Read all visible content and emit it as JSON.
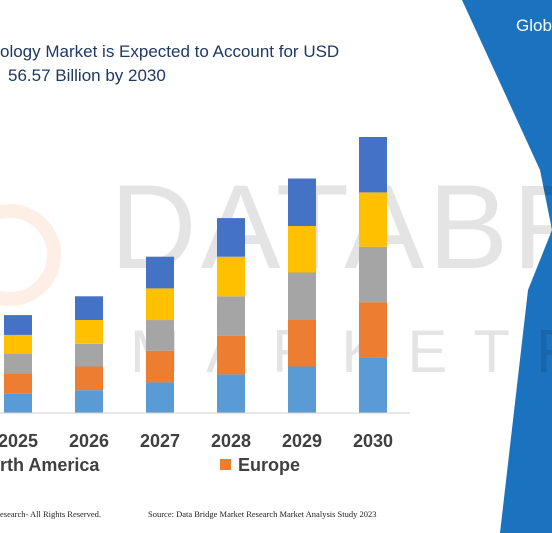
{
  "header": {
    "title_line1": "ology Market is Expected to Account for USD",
    "title_line2": "56.57 Billion by 2030",
    "brand_text": "Glob"
  },
  "footer": {
    "left_text": "esearch- All Rights Reserved.",
    "right_text": "Source: Data Bridge Market Research Market Analysis Study 2023"
  },
  "watermark": {
    "text": "DATABRI",
    "subtext": "MARKETRES"
  },
  "colors": {
    "brand_blue": "#1b72be",
    "title": "#1f3864",
    "segment_1": "#5b9bd5",
    "segment_2": "#ed7d31",
    "segment_3": "#a5a5a5",
    "segment_4": "#ffc000",
    "segment_5": "#4472c4"
  },
  "chart_data": {
    "type": "bar",
    "stacked": true,
    "categories": [
      "2025",
      "2026",
      "2027",
      "2028",
      "2029",
      "2030"
    ],
    "series": [
      {
        "name": "rth America",
        "color": "#5b9bd5",
        "values": [
          20,
          23,
          31,
          39,
          47,
          56
        ]
      },
      {
        "name": "Europe",
        "color": "#ed7d31",
        "values": [
          20,
          24,
          32,
          39,
          47,
          56
        ]
      },
      {
        "color": "#a5a5a5",
        "values": [
          20,
          23,
          31,
          40,
          48,
          56
        ]
      },
      {
        "color": "#ffc000",
        "values": [
          19,
          24,
          32,
          40,
          47,
          55
        ]
      },
      {
        "color": "#4472c4",
        "values": [
          20,
          24,
          32,
          39,
          48,
          56
        ]
      }
    ],
    "grid": false,
    "legend_position": "bottom"
  }
}
